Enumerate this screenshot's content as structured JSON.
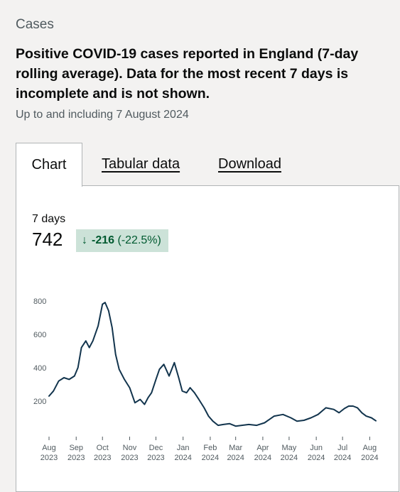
{
  "section": {
    "label": "Cases"
  },
  "card": {
    "title": "Positive COVID-19 cases reported in England (7-day rolling average). Data for the most recent 7 days is incomplete and is not shown.",
    "updated": "Up to and including 7 August 2024"
  },
  "tabs": [
    {
      "label": "Chart",
      "active": true
    },
    {
      "label": "Tabular data",
      "active": false
    },
    {
      "label": "Download",
      "active": false
    }
  ],
  "metric": {
    "label": "7 days",
    "value": "742",
    "change": "-216",
    "change_pct": "(-22.5%)",
    "change_icon": "arrow-down-icon",
    "change_color": "#005a30",
    "badge_bg": "#cce2d8"
  },
  "colors": {
    "line": "#12344d",
    "grid_text": "#505a5f"
  },
  "chart_data": {
    "type": "line",
    "y_ticks": [
      200,
      400,
      600,
      800
    ],
    "ylim": [
      0,
      850
    ],
    "xlim": [
      "2023-08-01",
      "2024-08-08"
    ],
    "x_ticks": [
      {
        "date": "2023-08-01",
        "month": "Aug",
        "year": "2023"
      },
      {
        "date": "2023-09-01",
        "month": "Sep",
        "year": "2023"
      },
      {
        "date": "2023-10-01",
        "month": "Oct",
        "year": "2023"
      },
      {
        "date": "2023-11-01",
        "month": "Nov",
        "year": "2023"
      },
      {
        "date": "2023-12-01",
        "month": "Dec",
        "year": "2023"
      },
      {
        "date": "2024-01-01",
        "month": "Jan",
        "year": "2024"
      },
      {
        "date": "2024-02-01",
        "month": "Feb",
        "year": "2024"
      },
      {
        "date": "2024-03-01",
        "month": "Mar",
        "year": "2024"
      },
      {
        "date": "2024-04-01",
        "month": "Apr",
        "year": "2024"
      },
      {
        "date": "2024-05-01",
        "month": "May",
        "year": "2024"
      },
      {
        "date": "2024-06-01",
        "month": "Jun",
        "year": "2024"
      },
      {
        "date": "2024-07-01",
        "month": "Jul",
        "year": "2024"
      },
      {
        "date": "2024-08-01",
        "month": "Aug",
        "year": "2024"
      }
    ],
    "series": [
      {
        "x": [
          "2023-08-01",
          "2023-08-06",
          "2023-08-12",
          "2023-08-18",
          "2023-08-24",
          "2023-08-30",
          "2023-09-03",
          "2023-09-07",
          "2023-09-12",
          "2023-09-16",
          "2023-09-20",
          "2023-09-26",
          "2023-10-01",
          "2023-10-04",
          "2023-10-08",
          "2023-10-12",
          "2023-10-16",
          "2023-10-20",
          "2023-10-26",
          "2023-11-01",
          "2023-11-07",
          "2023-11-13",
          "2023-11-18",
          "2023-11-22",
          "2023-11-26",
          "2023-12-01",
          "2023-12-05",
          "2023-12-10",
          "2023-12-16",
          "2023-12-22",
          "2023-12-27",
          "2023-12-31",
          "2024-01-05",
          "2024-01-09",
          "2024-01-14",
          "2024-01-19",
          "2024-01-25",
          "2024-01-30",
          "2024-02-04",
          "2024-02-10",
          "2024-02-16",
          "2024-02-23",
          "2024-03-01",
          "2024-03-08",
          "2024-03-16",
          "2024-03-25",
          "2024-04-03",
          "2024-04-14",
          "2024-04-24",
          "2024-05-03",
          "2024-05-10",
          "2024-05-18",
          "2024-05-26",
          "2024-06-03",
          "2024-06-12",
          "2024-06-21",
          "2024-06-27",
          "2024-07-03",
          "2024-07-08",
          "2024-07-13",
          "2024-07-18",
          "2024-07-23",
          "2024-07-28",
          "2024-08-03",
          "2024-08-08"
        ],
        "y": [
          230,
          260,
          320,
          340,
          330,
          350,
          400,
          520,
          560,
          520,
          560,
          650,
          780,
          790,
          740,
          640,
          480,
          390,
          330,
          280,
          190,
          210,
          180,
          220,
          250,
          330,
          390,
          420,
          350,
          430,
          340,
          260,
          250,
          280,
          250,
          210,
          160,
          110,
          80,
          55,
          60,
          65,
          50,
          55,
          60,
          55,
          70,
          110,
          120,
          100,
          80,
          85,
          100,
          120,
          160,
          150,
          130,
          155,
          170,
          170,
          160,
          130,
          110,
          100,
          82
        ]
      }
    ]
  }
}
